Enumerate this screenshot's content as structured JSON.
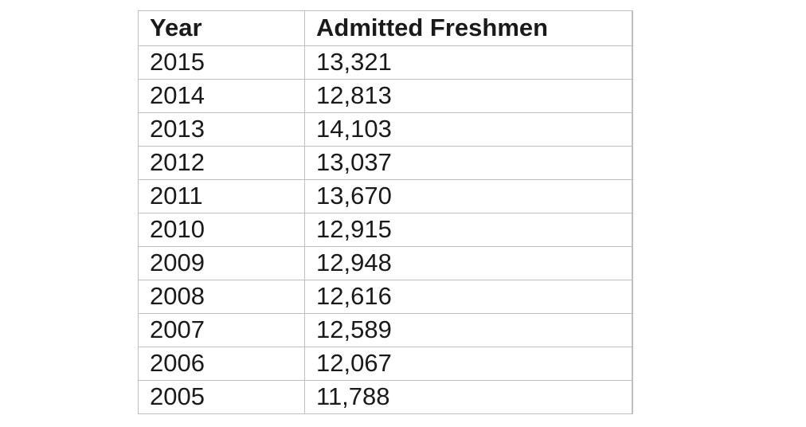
{
  "table": {
    "headers": [
      "Year",
      "Admitted Freshmen"
    ],
    "rows": [
      {
        "year": "2015",
        "admitted": "13,321"
      },
      {
        "year": "2014",
        "admitted": "12,813"
      },
      {
        "year": "2013",
        "admitted": "14,103"
      },
      {
        "year": "2012",
        "admitted": "13,037"
      },
      {
        "year": "2011",
        "admitted": "13,670"
      },
      {
        "year": "2010",
        "admitted": "12,915"
      },
      {
        "year": "2009",
        "admitted": "12,948"
      },
      {
        "year": "2008",
        "admitted": "12,616"
      },
      {
        "year": "2007",
        "admitted": "12,589"
      },
      {
        "year": "2006",
        "admitted": "12,067"
      },
      {
        "year": "2005",
        "admitted": "11,788"
      }
    ]
  },
  "chart_data": {
    "type": "table",
    "title": "",
    "columns": [
      "Year",
      "Admitted Freshmen"
    ],
    "categories": [
      2015,
      2014,
      2013,
      2012,
      2011,
      2010,
      2009,
      2008,
      2007,
      2006,
      2005
    ],
    "values": [
      13321,
      12813,
      14103,
      13037,
      13670,
      12915,
      12948,
      12616,
      12589,
      12067,
      11788
    ]
  },
  "colors": {
    "border": "#bfbfbf",
    "text": "#1a1a1a",
    "background": "#ffffff"
  }
}
